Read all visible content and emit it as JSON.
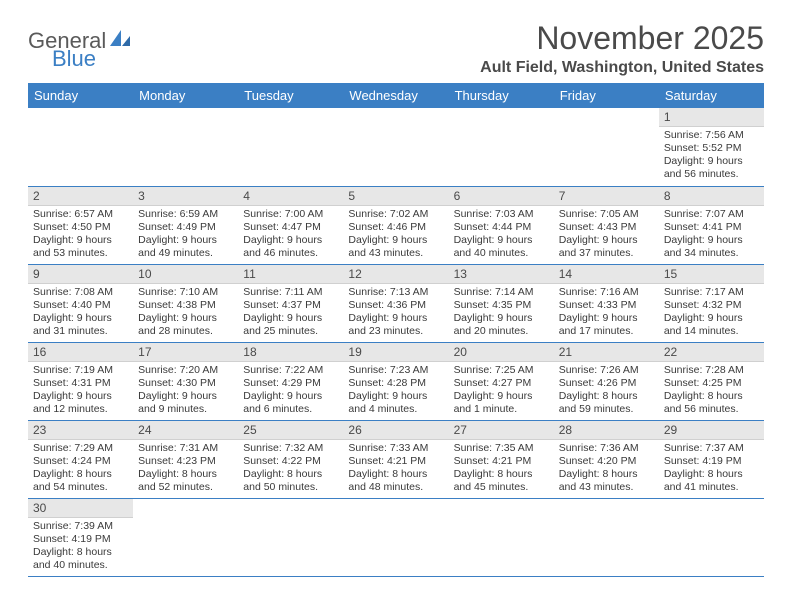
{
  "logo": {
    "part1": "General",
    "part2": "Blue"
  },
  "title": "November 2025",
  "location": "Ault Field, Washington, United States",
  "colors": {
    "header_bg": "#3b7fc4",
    "header_text": "#ffffff",
    "daynum_bg": "#e7e7e7",
    "row_border": "#3b7fc4",
    "text": "#3a3a3a",
    "title_color": "#4a4a4a"
  },
  "weekdays": [
    "Sunday",
    "Monday",
    "Tuesday",
    "Wednesday",
    "Thursday",
    "Friday",
    "Saturday"
  ],
  "weeks": [
    [
      null,
      null,
      null,
      null,
      null,
      null,
      {
        "n": "1",
        "sunrise": "7:56 AM",
        "sunset": "5:52 PM",
        "dl": "9 hours and 56 minutes."
      }
    ],
    [
      {
        "n": "2",
        "sunrise": "6:57 AM",
        "sunset": "4:50 PM",
        "dl": "9 hours and 53 minutes."
      },
      {
        "n": "3",
        "sunrise": "6:59 AM",
        "sunset": "4:49 PM",
        "dl": "9 hours and 49 minutes."
      },
      {
        "n": "4",
        "sunrise": "7:00 AM",
        "sunset": "4:47 PM",
        "dl": "9 hours and 46 minutes."
      },
      {
        "n": "5",
        "sunrise": "7:02 AM",
        "sunset": "4:46 PM",
        "dl": "9 hours and 43 minutes."
      },
      {
        "n": "6",
        "sunrise": "7:03 AM",
        "sunset": "4:44 PM",
        "dl": "9 hours and 40 minutes."
      },
      {
        "n": "7",
        "sunrise": "7:05 AM",
        "sunset": "4:43 PM",
        "dl": "9 hours and 37 minutes."
      },
      {
        "n": "8",
        "sunrise": "7:07 AM",
        "sunset": "4:41 PM",
        "dl": "9 hours and 34 minutes."
      }
    ],
    [
      {
        "n": "9",
        "sunrise": "7:08 AM",
        "sunset": "4:40 PM",
        "dl": "9 hours and 31 minutes."
      },
      {
        "n": "10",
        "sunrise": "7:10 AM",
        "sunset": "4:38 PM",
        "dl": "9 hours and 28 minutes."
      },
      {
        "n": "11",
        "sunrise": "7:11 AM",
        "sunset": "4:37 PM",
        "dl": "9 hours and 25 minutes."
      },
      {
        "n": "12",
        "sunrise": "7:13 AM",
        "sunset": "4:36 PM",
        "dl": "9 hours and 23 minutes."
      },
      {
        "n": "13",
        "sunrise": "7:14 AM",
        "sunset": "4:35 PM",
        "dl": "9 hours and 20 minutes."
      },
      {
        "n": "14",
        "sunrise": "7:16 AM",
        "sunset": "4:33 PM",
        "dl": "9 hours and 17 minutes."
      },
      {
        "n": "15",
        "sunrise": "7:17 AM",
        "sunset": "4:32 PM",
        "dl": "9 hours and 14 minutes."
      }
    ],
    [
      {
        "n": "16",
        "sunrise": "7:19 AM",
        "sunset": "4:31 PM",
        "dl": "9 hours and 12 minutes."
      },
      {
        "n": "17",
        "sunrise": "7:20 AM",
        "sunset": "4:30 PM",
        "dl": "9 hours and 9 minutes."
      },
      {
        "n": "18",
        "sunrise": "7:22 AM",
        "sunset": "4:29 PM",
        "dl": "9 hours and 6 minutes."
      },
      {
        "n": "19",
        "sunrise": "7:23 AM",
        "sunset": "4:28 PM",
        "dl": "9 hours and 4 minutes."
      },
      {
        "n": "20",
        "sunrise": "7:25 AM",
        "sunset": "4:27 PM",
        "dl": "9 hours and 1 minute."
      },
      {
        "n": "21",
        "sunrise": "7:26 AM",
        "sunset": "4:26 PM",
        "dl": "8 hours and 59 minutes."
      },
      {
        "n": "22",
        "sunrise": "7:28 AM",
        "sunset": "4:25 PM",
        "dl": "8 hours and 56 minutes."
      }
    ],
    [
      {
        "n": "23",
        "sunrise": "7:29 AM",
        "sunset": "4:24 PM",
        "dl": "8 hours and 54 minutes."
      },
      {
        "n": "24",
        "sunrise": "7:31 AM",
        "sunset": "4:23 PM",
        "dl": "8 hours and 52 minutes."
      },
      {
        "n": "25",
        "sunrise": "7:32 AM",
        "sunset": "4:22 PM",
        "dl": "8 hours and 50 minutes."
      },
      {
        "n": "26",
        "sunrise": "7:33 AM",
        "sunset": "4:21 PM",
        "dl": "8 hours and 48 minutes."
      },
      {
        "n": "27",
        "sunrise": "7:35 AM",
        "sunset": "4:21 PM",
        "dl": "8 hours and 45 minutes."
      },
      {
        "n": "28",
        "sunrise": "7:36 AM",
        "sunset": "4:20 PM",
        "dl": "8 hours and 43 minutes."
      },
      {
        "n": "29",
        "sunrise": "7:37 AM",
        "sunset": "4:19 PM",
        "dl": "8 hours and 41 minutes."
      }
    ],
    [
      {
        "n": "30",
        "sunrise": "7:39 AM",
        "sunset": "4:19 PM",
        "dl": "8 hours and 40 minutes."
      },
      null,
      null,
      null,
      null,
      null,
      null
    ]
  ],
  "labels": {
    "sunrise": "Sunrise:",
    "sunset": "Sunset:",
    "daylight": "Daylight:"
  }
}
